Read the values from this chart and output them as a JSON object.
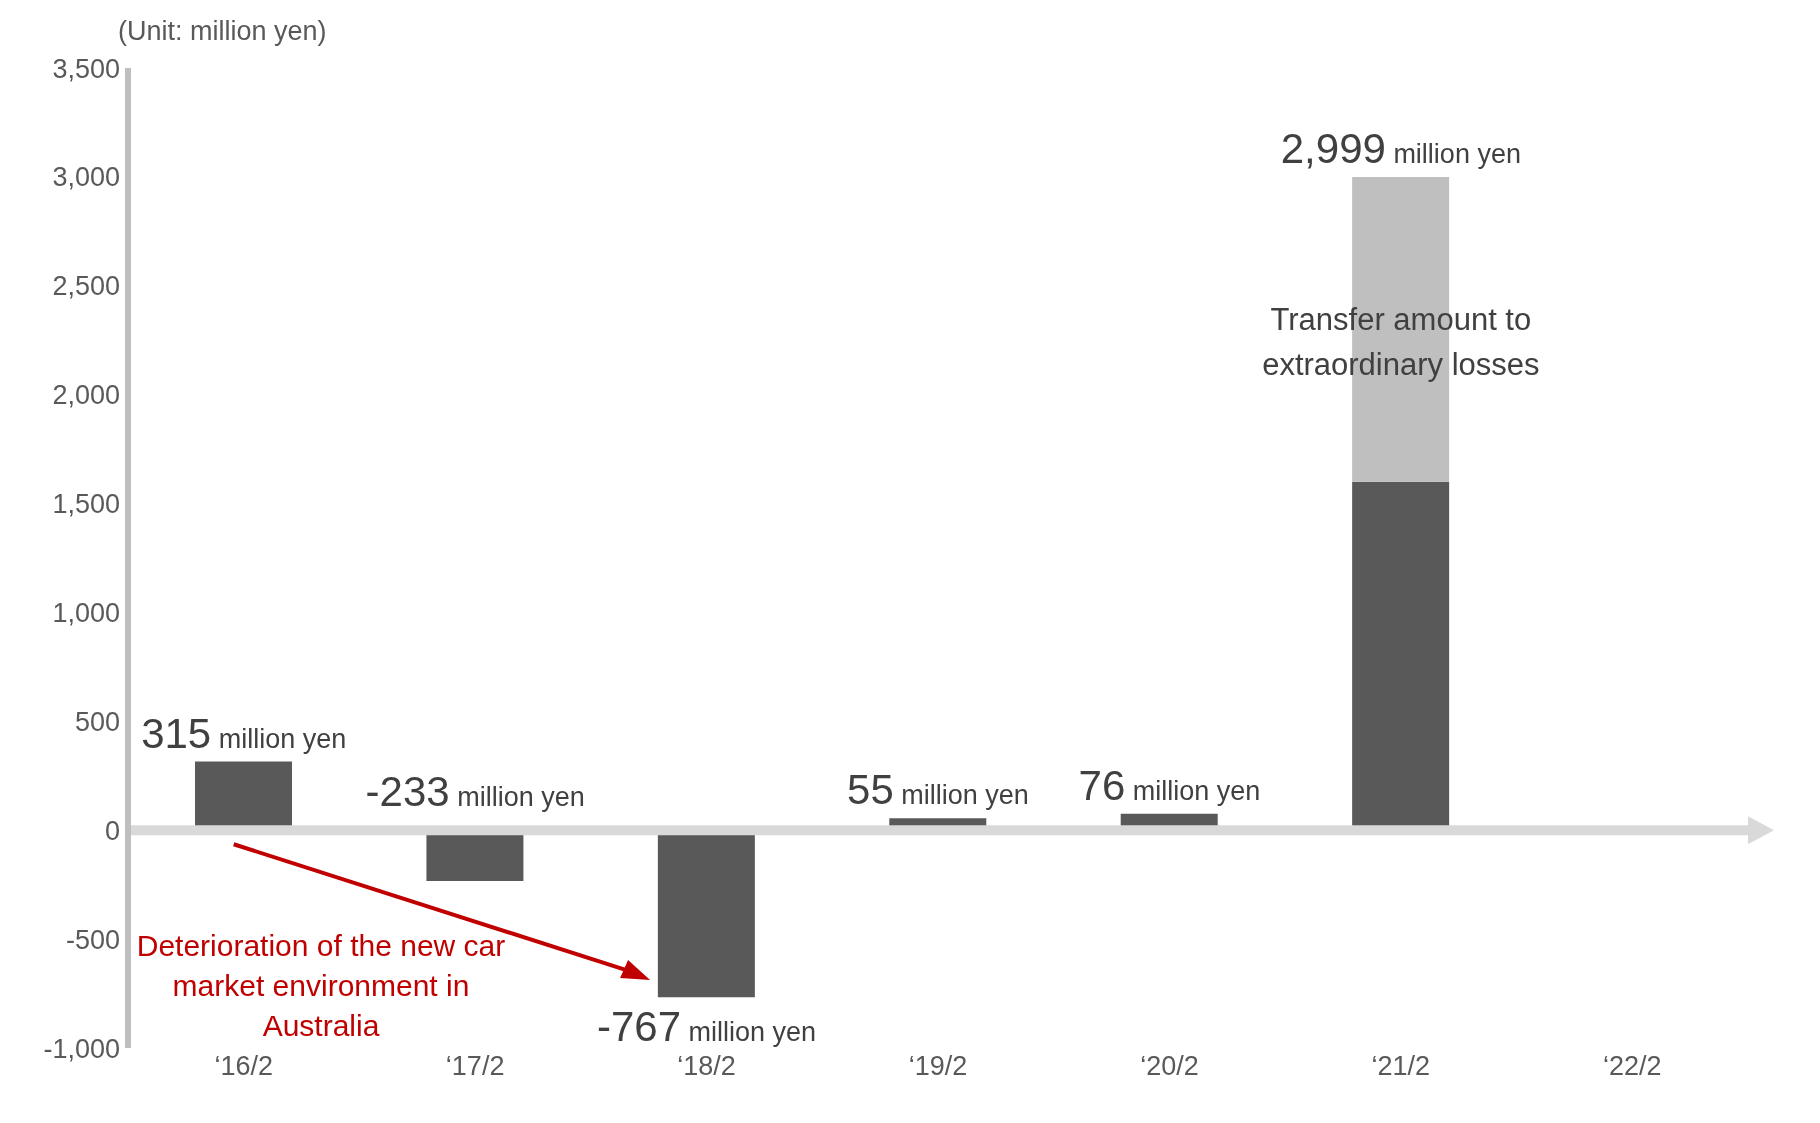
{
  "chart_data": {
    "type": "bar",
    "stacked": true,
    "categories": [
      "‘16/2",
      "‘17/2",
      "‘18/2",
      "‘19/2",
      "‘20/2",
      "‘21/2",
      "‘22/2"
    ],
    "series": [
      {
        "color": "#595959",
        "values": [
          315,
          -233,
          -767,
          55,
          76,
          1600,
          null
        ],
        "value_labels": [
          "315 million yen",
          "-233 million yen",
          "-767 million yen",
          "55 million yen",
          "76 million yen",
          null,
          null
        ]
      },
      {
        "color": "#bfbfbf",
        "values": [
          null,
          null,
          null,
          null,
          null,
          1399,
          null
        ]
      }
    ],
    "totals": [
      null,
      null,
      null,
      null,
      null,
      "2,999 million yen",
      null
    ],
    "ylim": [
      -1000,
      3500
    ],
    "yticks": [
      {
        "value": -1000,
        "label": "-1,000"
      },
      -500,
      0,
      500,
      {
        "value": 1000,
        "label": "1,000"
      },
      {
        "value": 1500,
        "label": "1,500"
      },
      {
        "value": 2000,
        "label": "2,000"
      },
      {
        "value": 2500,
        "label": "2,500"
      },
      {
        "value": 3000,
        "label": "3,000"
      },
      {
        "value": 3500,
        "label": "3,500"
      }
    ],
    "ref_lines": [
      {
        "axis": "y",
        "value": 0,
        "color": "#d9d9d9"
      }
    ],
    "grid": false,
    "legend": false,
    "annotations": [
      "(Unit: million yen)",
      "Transfer amount  to extraordinary losses",
      "Deterioration of the new car market environment in Australia"
    ]
  }
}
